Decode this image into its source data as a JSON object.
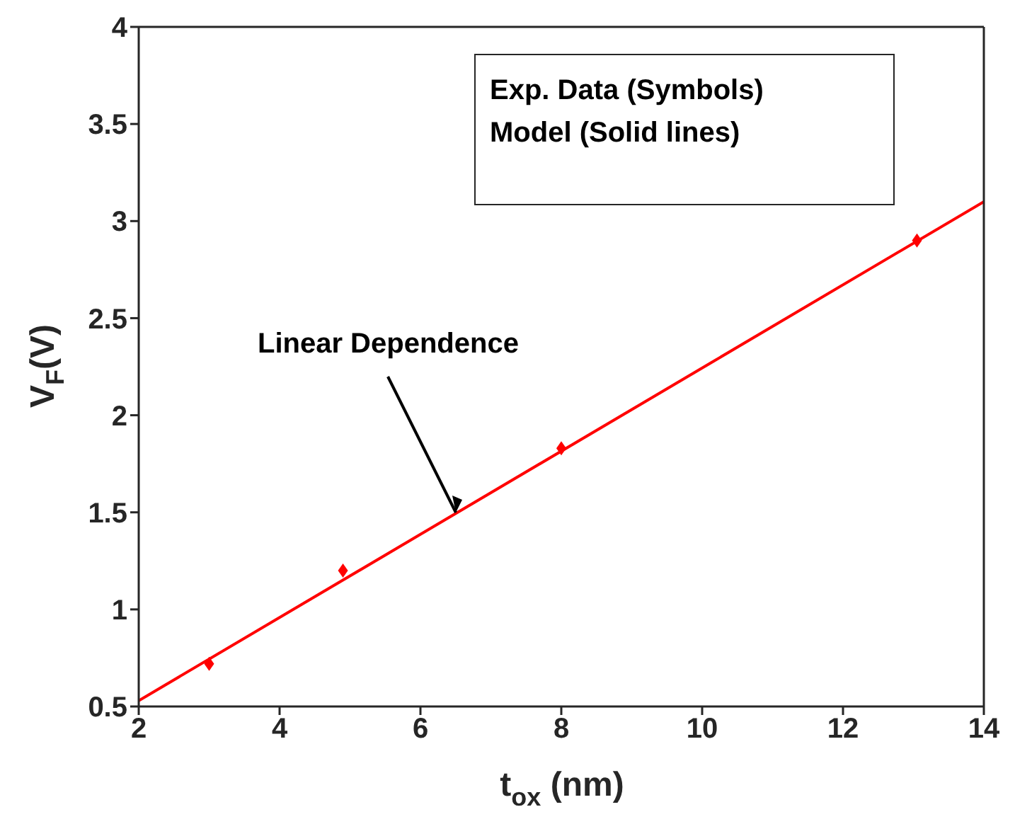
{
  "chart_data": {
    "type": "scatter",
    "xlabel": "t$_{ox}$ (nm)",
    "ylabel": "V$_{F}$(V)",
    "xlim": [
      2,
      14
    ],
    "xticks": [
      2,
      4,
      6,
      8,
      10,
      12,
      14
    ],
    "ylim": [
      0.5,
      4
    ],
    "yticks": [
      0.5,
      1,
      1.5,
      2,
      2.5,
      3,
      3.5,
      4
    ],
    "series": [
      {
        "color": "#ff0000",
        "marker": "diamond",
        "x": [
          3,
          4.9,
          8,
          13.05
        ],
        "values": [
          0.72,
          1.2,
          1.83,
          2.9
        ]
      },
      {
        "type": "line",
        "color": "#ff0000",
        "marker": "none",
        "line_style": "solid",
        "x": [
          2,
          14
        ],
        "values": [
          0.53,
          3.1
        ]
      }
    ],
    "annotations": [
      "Exp. Data (Symbols)",
      "Model (Solid lines)",
      {
        "text": "Linear Dependence",
        "x": 6.5,
        "y": 1.5
      }
    ]
  }
}
